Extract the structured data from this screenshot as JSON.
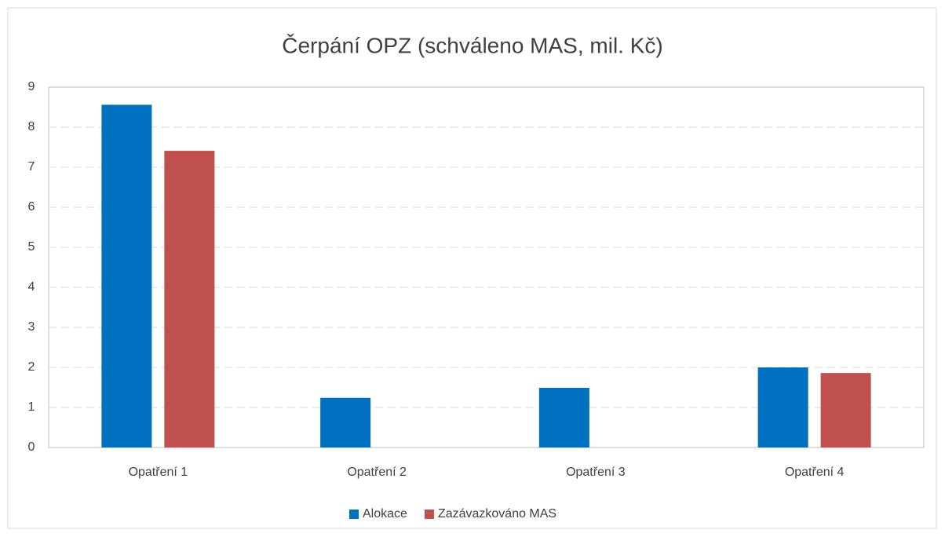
{
  "chart_data": {
    "type": "bar",
    "title": "Čerpání OPZ (schváleno MAS, mil. Kč)",
    "categories": [
      "Opatření 1",
      "Opatření 2",
      "Opatření 3",
      "Opatření 4"
    ],
    "series": [
      {
        "name": "Alokace",
        "color": "#0070c0",
        "values": [
          8.56,
          1.24,
          1.49,
          2.0
        ]
      },
      {
        "name": "Zazávazkováno MAS",
        "color": "#c0504d",
        "values": [
          7.41,
          0,
          0,
          1.86
        ]
      }
    ],
    "ylim": [
      0,
      9
    ],
    "yticks": [
      0,
      1,
      2,
      3,
      4,
      5,
      6,
      7,
      8,
      9
    ],
    "grid": true,
    "legend": "bottom"
  }
}
